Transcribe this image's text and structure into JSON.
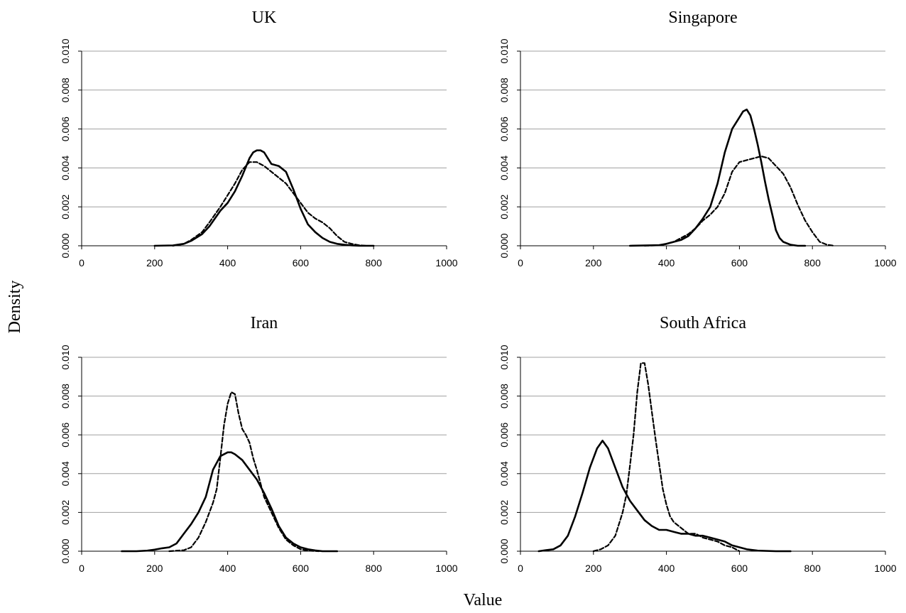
{
  "figure": {
    "xlabel": "Value",
    "ylabel": "Density"
  },
  "style": {
    "line_color": "#000000",
    "grid_color": "#a0a0a0"
  },
  "chart_data": [
    {
      "type": "line",
      "title": "UK",
      "xlim": [
        0,
        1000
      ],
      "ylim": [
        0,
        0.01
      ],
      "xticks": [
        "0",
        "200",
        "400",
        "600",
        "800",
        "1000"
      ],
      "yticks": [
        "0.000",
        "0.002",
        "0.004",
        "0.006",
        "0.008",
        "0.010"
      ],
      "grid": true,
      "series": [
        {
          "style": "solid",
          "x": [
            200,
            250,
            280,
            300,
            330,
            350,
            380,
            400,
            420,
            440,
            460,
            470,
            480,
            490,
            500,
            510,
            520,
            540,
            560,
            580,
            600,
            620,
            640,
            660,
            680,
            700,
            720,
            740,
            760,
            780,
            800
          ],
          "y": [
            0.0,
            2e-05,
            0.0001,
            0.00025,
            0.0006,
            0.001,
            0.0018,
            0.0022,
            0.0028,
            0.0036,
            0.0045,
            0.0048,
            0.0049,
            0.0049,
            0.0048,
            0.0045,
            0.0042,
            0.0041,
            0.0038,
            0.0029,
            0.0019,
            0.0011,
            0.0007,
            0.0004,
            0.0002,
            0.0001,
            5e-05,
            2e-05,
            0.0,
            0.0,
            0.0
          ]
        },
        {
          "style": "dashed",
          "x": [
            250,
            280,
            300,
            330,
            350,
            380,
            400,
            420,
            440,
            460,
            480,
            500,
            520,
            540,
            560,
            580,
            600,
            620,
            640,
            660,
            680,
            700,
            720,
            740,
            760,
            780
          ],
          "y": [
            0.0,
            0.0001,
            0.0003,
            0.0007,
            0.0012,
            0.002,
            0.0026,
            0.0032,
            0.0039,
            0.0043,
            0.0043,
            0.0041,
            0.0038,
            0.0035,
            0.0032,
            0.0027,
            0.0022,
            0.0017,
            0.0014,
            0.0012,
            0.0009,
            0.0005,
            0.0002,
            0.0001,
            3e-05,
            0.0
          ]
        }
      ]
    },
    {
      "type": "line",
      "title": "Singapore",
      "xlim": [
        0,
        1000
      ],
      "ylim": [
        0,
        0.01
      ],
      "xticks": [
        "0",
        "200",
        "400",
        "600",
        "800",
        "1000"
      ],
      "yticks": [
        "0.000",
        "0.002",
        "0.004",
        "0.006",
        "0.008",
        "0.010"
      ],
      "grid": true,
      "series": [
        {
          "style": "solid",
          "x": [
            300,
            380,
            400,
            420,
            440,
            460,
            480,
            500,
            520,
            540,
            560,
            580,
            600,
            610,
            620,
            630,
            640,
            650,
            660,
            670,
            680,
            690,
            700,
            710,
            720,
            740,
            760,
            780
          ],
          "y": [
            0.0,
            3e-05,
            0.0001,
            0.0002,
            0.0003,
            0.0005,
            0.0009,
            0.0014,
            0.002,
            0.0032,
            0.0048,
            0.006,
            0.0066,
            0.0069,
            0.007,
            0.0067,
            0.006,
            0.0052,
            0.0043,
            0.0033,
            0.0024,
            0.0016,
            0.0008,
            0.0004,
            0.0002,
            5e-05,
            0.0,
            0.0
          ]
        },
        {
          "style": "dashed",
          "x": [
            340,
            380,
            400,
            420,
            440,
            460,
            480,
            500,
            520,
            540,
            560,
            580,
            600,
            620,
            640,
            660,
            680,
            700,
            720,
            740,
            760,
            780,
            800,
            820,
            840,
            860
          ],
          "y": [
            0.0,
            3e-05,
            0.0001,
            0.0002,
            0.0004,
            0.0006,
            0.0009,
            0.0013,
            0.0016,
            0.002,
            0.0027,
            0.0038,
            0.0043,
            0.0044,
            0.0045,
            0.0046,
            0.0045,
            0.0041,
            0.0037,
            0.003,
            0.0021,
            0.0013,
            0.0007,
            0.0002,
            5e-05,
            0.0
          ]
        }
      ]
    },
    {
      "type": "line",
      "title": "Iran",
      "xlim": [
        0,
        1000
      ],
      "ylim": [
        0,
        0.01
      ],
      "xticks": [
        "0",
        "200",
        "400",
        "600",
        "800",
        "1000"
      ],
      "yticks": [
        "0.000",
        "0.002",
        "0.004",
        "0.006",
        "0.008",
        "0.010"
      ],
      "grid": true,
      "series": [
        {
          "style": "solid",
          "x": [
            110,
            150,
            180,
            200,
            220,
            240,
            260,
            280,
            300,
            320,
            340,
            360,
            380,
            400,
            410,
            420,
            440,
            460,
            480,
            500,
            520,
            540,
            560,
            580,
            600,
            620,
            640,
            660,
            700
          ],
          "y": [
            0.0,
            0.0,
            3e-05,
            8e-05,
            0.00015,
            0.0002,
            0.0004,
            0.0009,
            0.0014,
            0.002,
            0.0028,
            0.0042,
            0.0049,
            0.0051,
            0.0051,
            0.005,
            0.0047,
            0.0042,
            0.0037,
            0.003,
            0.0022,
            0.0013,
            0.0007,
            0.0004,
            0.0002,
            0.0001,
            4e-05,
            0.0,
            0.0
          ]
        },
        {
          "style": "dashed",
          "x": [
            240,
            280,
            300,
            320,
            340,
            360,
            370,
            380,
            390,
            400,
            410,
            420,
            430,
            440,
            450,
            460,
            470,
            480,
            490,
            500,
            520,
            540,
            560,
            580,
            600,
            620,
            650
          ],
          "y": [
            0.0,
            5e-05,
            0.0002,
            0.0007,
            0.0015,
            0.0025,
            0.0032,
            0.0048,
            0.0065,
            0.0076,
            0.0082,
            0.0081,
            0.0071,
            0.0063,
            0.006,
            0.0056,
            0.0048,
            0.0042,
            0.0035,
            0.0028,
            0.002,
            0.0012,
            0.0006,
            0.0003,
            0.0001,
            3e-05,
            0.0
          ]
        }
      ]
    },
    {
      "type": "line",
      "title": "South Africa",
      "xlim": [
        0,
        1000
      ],
      "ylim": [
        0,
        0.01
      ],
      "xticks": [
        "0",
        "200",
        "400",
        "600",
        "800",
        "1000"
      ],
      "yticks": [
        "0.000",
        "0.002",
        "0.004",
        "0.006",
        "0.008",
        "0.010"
      ],
      "grid": true,
      "series": [
        {
          "style": "solid",
          "x": [
            50,
            70,
            90,
            110,
            130,
            150,
            170,
            190,
            210,
            225,
            240,
            260,
            280,
            300,
            320,
            340,
            360,
            380,
            400,
            420,
            440,
            460,
            480,
            500,
            520,
            540,
            560,
            580,
            600,
            620,
            650,
            700,
            740
          ],
          "y": [
            0.0,
            5e-05,
            0.0001,
            0.0003,
            0.0008,
            0.0018,
            0.003,
            0.0043,
            0.0053,
            0.0057,
            0.0053,
            0.0043,
            0.0033,
            0.0026,
            0.0021,
            0.0016,
            0.0013,
            0.0011,
            0.0011,
            0.001,
            0.0009,
            0.0009,
            0.0008,
            0.0008,
            0.0007,
            0.0006,
            0.0005,
            0.0003,
            0.0002,
            0.0001,
            3e-05,
            0.0,
            0.0
          ]
        },
        {
          "style": "dashed",
          "x": [
            200,
            220,
            240,
            260,
            280,
            290,
            300,
            310,
            320,
            330,
            340,
            350,
            360,
            370,
            380,
            390,
            400,
            410,
            420,
            440,
            460,
            480,
            500,
            520,
            540,
            560,
            580,
            600
          ],
          "y": [
            0.0,
            0.0001,
            0.0003,
            0.0008,
            0.002,
            0.0029,
            0.0044,
            0.006,
            0.0082,
            0.0097,
            0.0097,
            0.0086,
            0.0072,
            0.0058,
            0.0045,
            0.0032,
            0.0024,
            0.0018,
            0.0015,
            0.0012,
            0.0009,
            0.0009,
            0.0007,
            0.0006,
            0.0005,
            0.0003,
            0.0002,
            0.0
          ]
        }
      ]
    }
  ]
}
